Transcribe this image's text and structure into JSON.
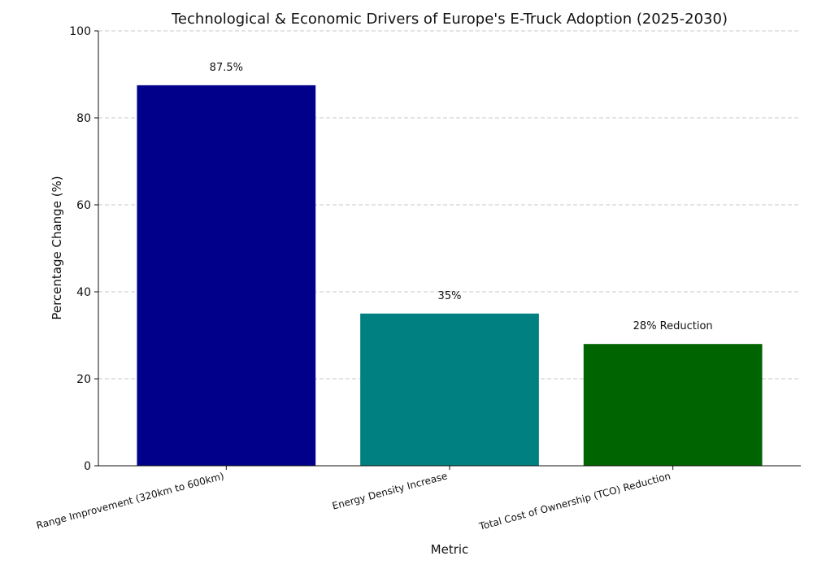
{
  "chart_data": {
    "type": "bar",
    "title": "Technological & Economic Drivers of Europe's E-Truck Adoption (2025-2030)",
    "xlabel": "Metric",
    "ylabel": "Percentage Change (%)",
    "ylim": [
      0,
      100
    ],
    "yticks": [
      0,
      20,
      40,
      60,
      80,
      100
    ],
    "grid": "horizontal",
    "categories": [
      "Range Improvement (320km to 600km)",
      "Energy Density Increase",
      "Total Cost of Ownership (TCO) Reduction"
    ],
    "values": [
      87.5,
      35,
      28
    ],
    "data_labels": [
      "87.5%",
      "35%",
      "28% Reduction"
    ],
    "colors": [
      "#00008b",
      "#008080",
      "#006400"
    ]
  }
}
